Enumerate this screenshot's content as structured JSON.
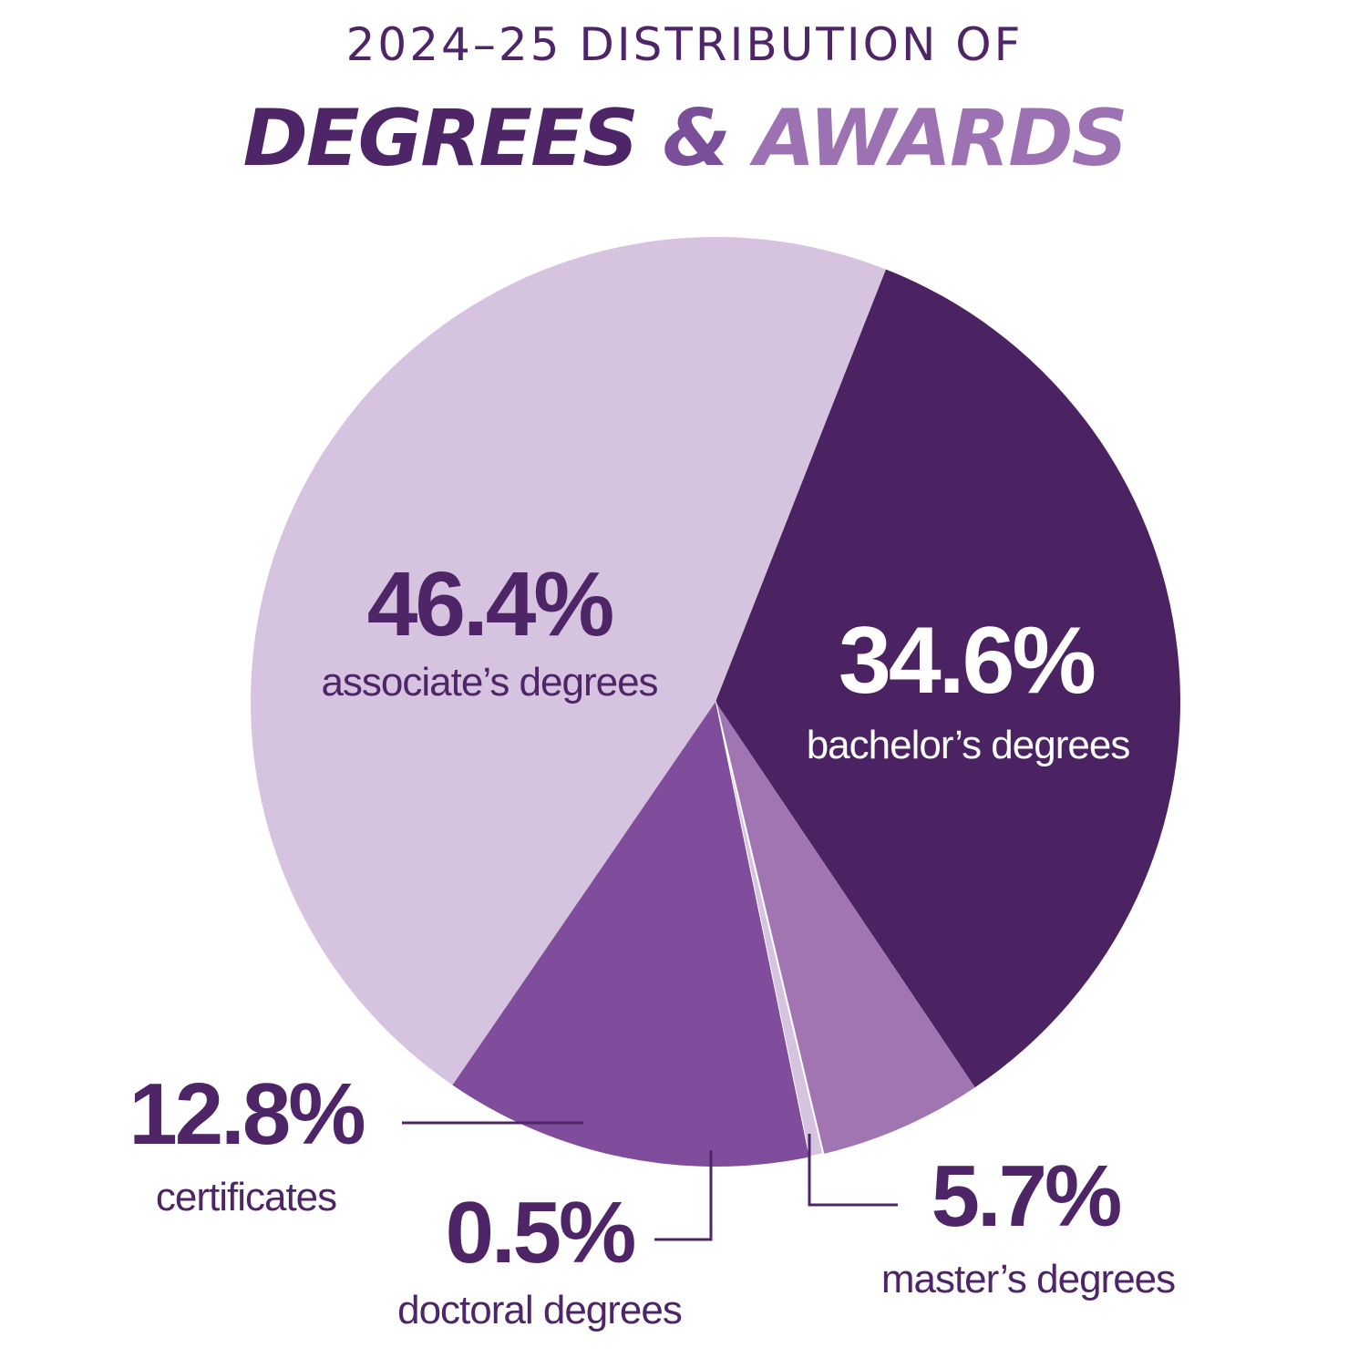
{
  "title": {
    "line1": "2024–25 DISTRIBUTION OF",
    "line2_part1": "DEGREES",
    "line2_part2": "&",
    "line2_part3": "AWARDS"
  },
  "colors": {
    "dark": "#4b2363",
    "mid": "#804c9c",
    "light": "#d6c3e0",
    "medium_light": "#a175b2",
    "text_dark": "#4e2566",
    "white": "#ffffff"
  },
  "chart_data": {
    "type": "pie",
    "title": "2024–25 DISTRIBUTION OF DEGREES & AWARDS",
    "slices": [
      {
        "name": "bachelor’s degrees",
        "value": 34.6,
        "label": "34.6%",
        "color": "#4b2363"
      },
      {
        "name": "master’s degrees",
        "value": 5.7,
        "label": "5.7%",
        "color": "#a175b2"
      },
      {
        "name": "doctoral degrees",
        "value": 0.5,
        "label": "0.5%",
        "color": "#d6c3e0"
      },
      {
        "name": "certificates",
        "value": 12.8,
        "label": "12.8%",
        "color": "#804c9c"
      },
      {
        "name": "associate’s degrees",
        "value": 46.4,
        "label": "46.4%",
        "color": "#d6c3e0"
      }
    ]
  }
}
